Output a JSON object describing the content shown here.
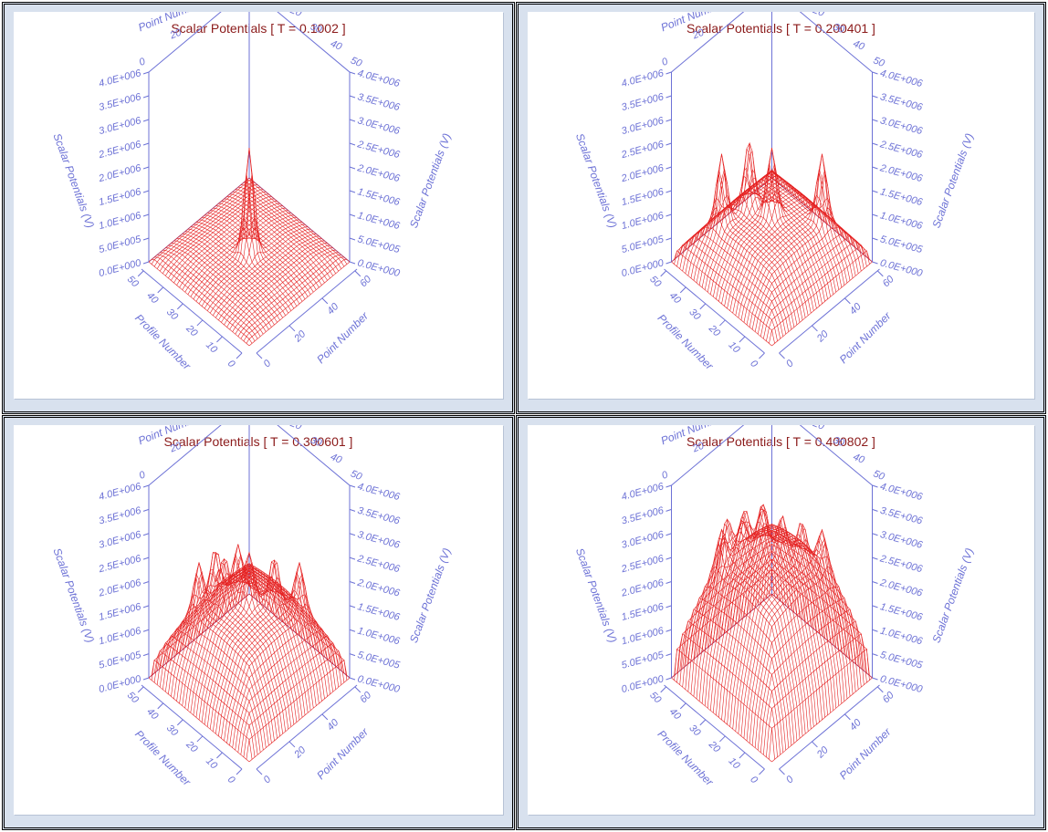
{
  "colors": {
    "title": "#8b1a1a",
    "axis": "#6d72d6",
    "surface": "#e52222",
    "panel_bg": "#d8e1ee"
  },
  "chart_data": [
    {
      "type": "surface3d",
      "title": "Scalar Potentials [ T = 0.1002 ]",
      "time": 0.1002,
      "x_label": "Profile Number",
      "y_label": "Point Number",
      "z_label": "Scalar Potentials (V)",
      "x_ticks": [
        "0",
        "10",
        "20",
        "30",
        "40",
        "50"
      ],
      "y_ticks": [
        "0",
        "20",
        "40",
        "60"
      ],
      "z_ticks": [
        "0.0E+000",
        "5.0E+005",
        "1.0E+006",
        "1.5E+006",
        "2.0E+006",
        "2.5E+006",
        "3.0E+006",
        "3.5E+006",
        "4.0E+006"
      ],
      "zlim": [
        0,
        4000000
      ],
      "peak_count": 1,
      "peak_height": 2200000,
      "base_height": 200000
    },
    {
      "type": "surface3d",
      "title": "Scalar Potentials [ T = 0.200401 ]",
      "time": 0.200401,
      "x_label": "Profile Number",
      "y_label": "Point Number",
      "z_label": "Scalar Potentials (V)",
      "x_ticks": [
        "0",
        "10",
        "20",
        "30",
        "40",
        "50"
      ],
      "y_ticks": [
        "0",
        "20",
        "40",
        "60"
      ],
      "z_ticks": [
        "0.0E+000",
        "5.0E+005",
        "1.0E+006",
        "1.5E+006",
        "2.0E+006",
        "2.5E+006",
        "3.0E+006",
        "3.5E+006",
        "4.0E+006"
      ],
      "zlim": [
        0,
        4000000
      ],
      "peak_count": 3,
      "peak_height": 1400000,
      "base_height": 1000000
    },
    {
      "type": "surface3d",
      "title": "Scalar Potentials [ T = 0.300601 ]",
      "time": 0.300601,
      "x_label": "Profile Number",
      "y_label": "Point Number",
      "z_label": "Scalar Potentials (V)",
      "x_ticks": [
        "0",
        "10",
        "20",
        "30",
        "40",
        "50"
      ],
      "y_ticks": [
        "0",
        "20",
        "40",
        "60"
      ],
      "z_ticks": [
        "0.0E+000",
        "5.0E+005",
        "1.0E+006",
        "1.5E+006",
        "2.0E+006",
        "2.5E+006",
        "3.0E+006",
        "3.5E+006",
        "4.0E+006"
      ],
      "zlim": [
        0,
        4000000
      ],
      "peak_count": 5,
      "peak_height": 1000000,
      "base_height": 1600000
    },
    {
      "type": "surface3d",
      "title": "Scalar Potentials [ T = 0.400802 ]",
      "time": 0.400802,
      "x_label": "Profile Number",
      "y_label": "Point Number",
      "z_label": "Scalar Potentials (V)",
      "x_ticks": [
        "0",
        "10",
        "20",
        "30",
        "40",
        "50"
      ],
      "y_ticks": [
        "0",
        "20",
        "40",
        "60"
      ],
      "z_ticks": [
        "0.0E+000",
        "5.0E+005",
        "1.0E+006",
        "1.5E+006",
        "2.0E+006",
        "2.5E+006",
        "3.0E+006",
        "3.5E+006",
        "4.0E+006"
      ],
      "zlim": [
        0,
        4000000
      ],
      "peak_count": 6,
      "peak_height": 800000,
      "base_height": 2600000
    }
  ]
}
